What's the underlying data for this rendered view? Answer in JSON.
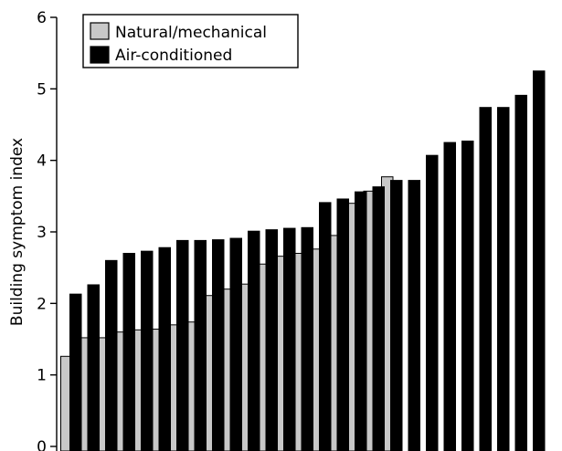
{
  "chart_data": {
    "type": "bar",
    "ylabel": "Building symptom index",
    "xlabel": "",
    "ylim": [
      0,
      6
    ],
    "yticks": [
      "0",
      "1",
      "2",
      "3",
      "4",
      "5",
      "6"
    ],
    "legend": {
      "position": "top-left",
      "entries": [
        {
          "name": "Natural/mechanical",
          "color": "#c8c8c8"
        },
        {
          "name": "Air-conditioned",
          "color": "#000000"
        }
      ]
    },
    "series": [
      {
        "name": "Natural/mechanical",
        "color": "#c8c8c8",
        "values": [
          1.26,
          1.52,
          1.52,
          1.6,
          1.63,
          1.64,
          1.7,
          1.74,
          2.11,
          2.2,
          2.27,
          2.55,
          2.66,
          2.7,
          2.76,
          2.95,
          3.4,
          3.57,
          3.77
        ]
      },
      {
        "name": "Air-conditioned",
        "color": "#000000",
        "values": [
          2.13,
          2.26,
          2.6,
          2.7,
          2.73,
          2.78,
          2.88,
          2.88,
          2.89,
          2.91,
          3.01,
          3.03,
          3.05,
          3.06,
          3.41,
          3.46,
          3.56,
          3.63,
          3.72,
          3.72,
          4.07,
          4.25,
          4.27,
          4.74,
          4.74,
          4.91,
          5.25
        ]
      }
    ]
  }
}
